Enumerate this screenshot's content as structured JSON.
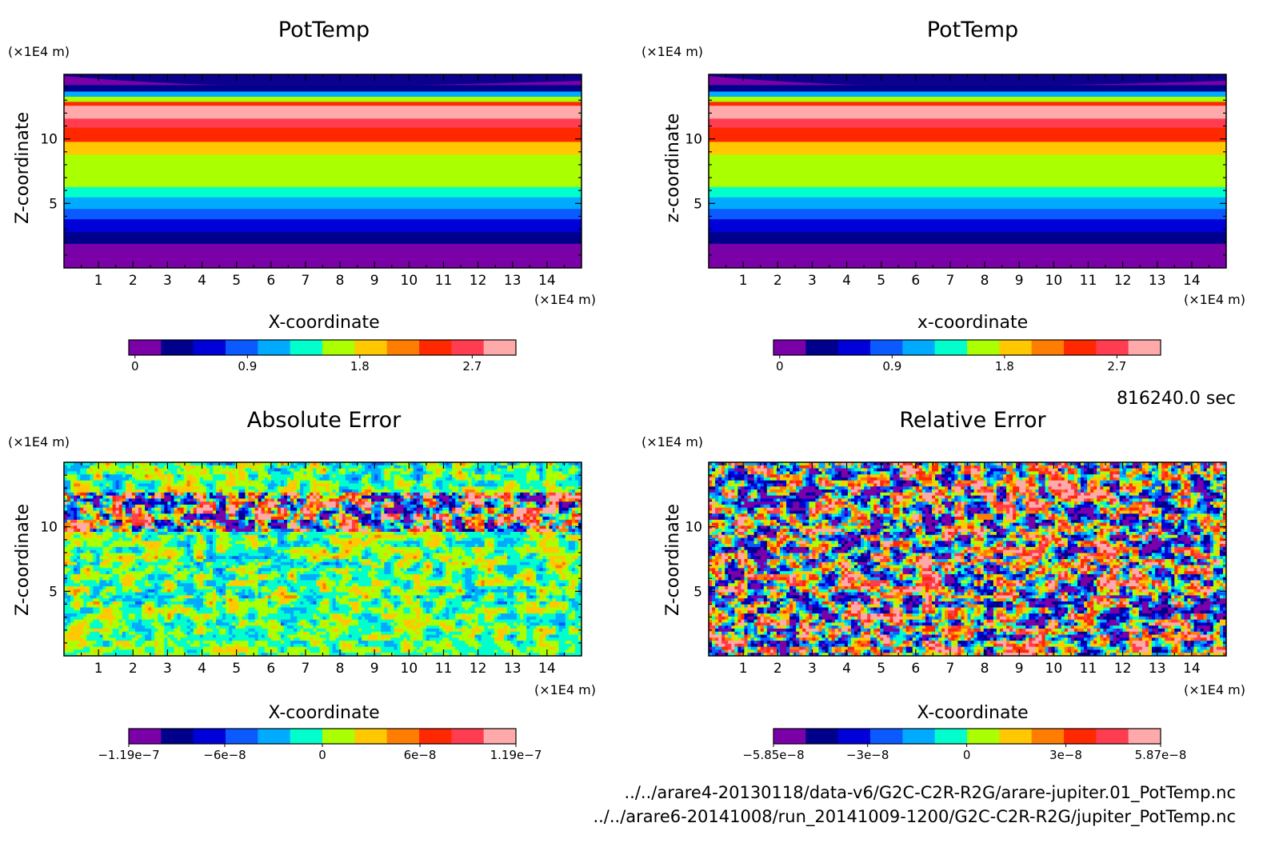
{
  "figure": {
    "time_label": "816240.0 sec",
    "file_lines": [
      "../../arare4-20130118/data-v6/G2C-C2R-R2G/arare-jupiter.01_PotTemp.nc",
      "../../arare6-20141008/run_20141009-1200/G2C-C2R-R2G/jupiter_PotTemp.nc"
    ]
  },
  "chart_data": [
    {
      "type": "heatmap",
      "title": "PotTemp",
      "xlabel": "X-coordinate",
      "ylabel": "Z-coordinate",
      "xunit": "(×1E4 m)",
      "yunit": "(×1E4 m)",
      "xlim": [
        0,
        15
      ],
      "ylim": [
        0,
        15
      ],
      "xticks": [
        1,
        2,
        3,
        4,
        5,
        6,
        7,
        8,
        9,
        10,
        11,
        12,
        13,
        14
      ],
      "yticks": [
        5,
        10
      ],
      "pattern": "horizontal-bands",
      "bands_z": [
        {
          "z0": 0,
          "z1": 1.9,
          "level": 0
        },
        {
          "z0": 1.9,
          "z1": 2.8,
          "level": 1
        },
        {
          "z0": 2.8,
          "z1": 3.8,
          "level": 2
        },
        {
          "z0": 3.8,
          "z1": 4.6,
          "level": 3
        },
        {
          "z0": 4.6,
          "z1": 5.5,
          "level": 4
        },
        {
          "z0": 5.5,
          "z1": 6.3,
          "level": 5
        },
        {
          "z0": 6.3,
          "z1": 8.8,
          "level": 6
        },
        {
          "z0": 8.8,
          "z1": 9.8,
          "level": 7
        },
        {
          "z0": 9.8,
          "z1": 10.9,
          "level": 9
        },
        {
          "z0": 10.9,
          "z1": 11.6,
          "level": 10
        },
        {
          "z0": 11.6,
          "z1": 12.6,
          "level": 11
        },
        {
          "z0": 12.6,
          "z1": 12.9,
          "level": 9
        },
        {
          "z0": 12.9,
          "z1": 13.3,
          "level": 6
        },
        {
          "z0": 13.3,
          "z1": 13.7,
          "level": 4
        },
        {
          "z0": 13.7,
          "z1": 14.2,
          "level": 1
        },
        {
          "z0": 14.2,
          "z1": 15,
          "level": 0
        }
      ],
      "colorbar": {
        "colors": [
          "#7a00a8",
          "#00008c",
          "#0000d8",
          "#0a5aff",
          "#00aaff",
          "#00ffcc",
          "#aaff00",
          "#ffc800",
          "#ff7d00",
          "#ff2800",
          "#ff3c50",
          "#ffaaaa"
        ],
        "ticks": [
          {
            "value": 0,
            "label": "0"
          },
          {
            "value": 0.9,
            "label": "0.9"
          },
          {
            "value": 1.8,
            "label": "1.8"
          },
          {
            "value": 2.7,
            "label": "2.7"
          }
        ],
        "range": [
          -0.05,
          3.05
        ]
      }
    },
    {
      "type": "heatmap",
      "title": "PotTemp",
      "xlabel": "x-coordinate",
      "ylabel": "z-coordinate",
      "xunit": "(×1E4 m)",
      "yunit": "(×1E4 m)",
      "xlim": [
        0,
        15
      ],
      "ylim": [
        0,
        15
      ],
      "xticks": [
        1,
        2,
        3,
        4,
        5,
        6,
        7,
        8,
        9,
        10,
        11,
        12,
        13,
        14
      ],
      "yticks": [
        5,
        10
      ],
      "pattern": "horizontal-bands",
      "bands_z": [
        {
          "z0": 0,
          "z1": 1.9,
          "level": 0
        },
        {
          "z0": 1.9,
          "z1": 2.8,
          "level": 1
        },
        {
          "z0": 2.8,
          "z1": 3.8,
          "level": 2
        },
        {
          "z0": 3.8,
          "z1": 4.6,
          "level": 3
        },
        {
          "z0": 4.6,
          "z1": 5.5,
          "level": 4
        },
        {
          "z0": 5.5,
          "z1": 6.3,
          "level": 5
        },
        {
          "z0": 6.3,
          "z1": 8.8,
          "level": 6
        },
        {
          "z0": 8.8,
          "z1": 9.8,
          "level": 7
        },
        {
          "z0": 9.8,
          "z1": 10.9,
          "level": 9
        },
        {
          "z0": 10.9,
          "z1": 11.6,
          "level": 10
        },
        {
          "z0": 11.6,
          "z1": 12.6,
          "level": 11
        },
        {
          "z0": 12.6,
          "z1": 12.9,
          "level": 9
        },
        {
          "z0": 12.9,
          "z1": 13.3,
          "level": 6
        },
        {
          "z0": 13.3,
          "z1": 13.7,
          "level": 4
        },
        {
          "z0": 13.7,
          "z1": 14.2,
          "level": 1
        },
        {
          "z0": 14.2,
          "z1": 15,
          "level": 0
        }
      ],
      "colorbar": {
        "colors": [
          "#7a00a8",
          "#00008c",
          "#0000d8",
          "#0a5aff",
          "#00aaff",
          "#00ffcc",
          "#aaff00",
          "#ffc800",
          "#ff7d00",
          "#ff2800",
          "#ff3c50",
          "#ffaaaa"
        ],
        "ticks": [
          {
            "value": 0,
            "label": "0"
          },
          {
            "value": 0.9,
            "label": "0.9"
          },
          {
            "value": 1.8,
            "label": "1.8"
          },
          {
            "value": 2.7,
            "label": "2.7"
          }
        ],
        "range": [
          -0.05,
          3.05
        ]
      }
    },
    {
      "type": "heatmap",
      "title": "Absolute Error",
      "xlabel": "X-coordinate",
      "ylabel": "Z-coordinate",
      "xunit": "(×1E4 m)",
      "yunit": "(×1E4 m)",
      "xlim": [
        0,
        15
      ],
      "ylim": [
        0,
        15
      ],
      "xticks": [
        1,
        2,
        3,
        4,
        5,
        6,
        7,
        8,
        9,
        10,
        11,
        12,
        13,
        14
      ],
      "yticks": [
        5,
        10
      ],
      "pattern": "noise",
      "noise_profile": "calm background with strong errors at z 9.5–12.5",
      "colorbar": {
        "colors": [
          "#7a00a8",
          "#00008c",
          "#0000d8",
          "#0a5aff",
          "#00aaff",
          "#00ffcc",
          "#aaff00",
          "#ffc800",
          "#ff7d00",
          "#ff2800",
          "#ff3c50",
          "#ffaaaa"
        ],
        "ticks": [
          {
            "value": -1.19e-07,
            "label": "−1.19e−7"
          },
          {
            "value": -6e-08,
            "label": "−6e−8"
          },
          {
            "value": 0,
            "label": "0"
          },
          {
            "value": 6e-08,
            "label": "6e−8"
          },
          {
            "value": 1.19e-07,
            "label": "1.19e−7"
          }
        ],
        "range": [
          -1.19e-07,
          1.19e-07
        ]
      }
    },
    {
      "type": "heatmap",
      "title": "Relative Error",
      "xlabel": "X-coordinate",
      "ylabel": "Z-coordinate",
      "xunit": "(×1E4 m)",
      "yunit": "(×1E4 m)",
      "xlim": [
        0,
        15
      ],
      "ylim": [
        0,
        15
      ],
      "xticks": [
        1,
        2,
        3,
        4,
        5,
        6,
        7,
        8,
        9,
        10,
        11,
        12,
        13,
        14
      ],
      "yticks": [
        5,
        10
      ],
      "pattern": "noise",
      "noise_profile": "uniform strong noise over the whole domain",
      "colorbar": {
        "colors": [
          "#7a00a8",
          "#00008c",
          "#0000d8",
          "#0a5aff",
          "#00aaff",
          "#00ffcc",
          "#aaff00",
          "#ffc800",
          "#ff7d00",
          "#ff2800",
          "#ff3c50",
          "#ffaaaa"
        ],
        "ticks": [
          {
            "value": -5.85e-08,
            "label": "−5.85e−8"
          },
          {
            "value": -3e-08,
            "label": "−3e−8"
          },
          {
            "value": 0,
            "label": "0"
          },
          {
            "value": 3e-08,
            "label": "3e−8"
          },
          {
            "value": 5.87e-08,
            "label": "5.87e−8"
          }
        ],
        "range": [
          -5.85e-08,
          5.87e-08
        ]
      }
    }
  ]
}
